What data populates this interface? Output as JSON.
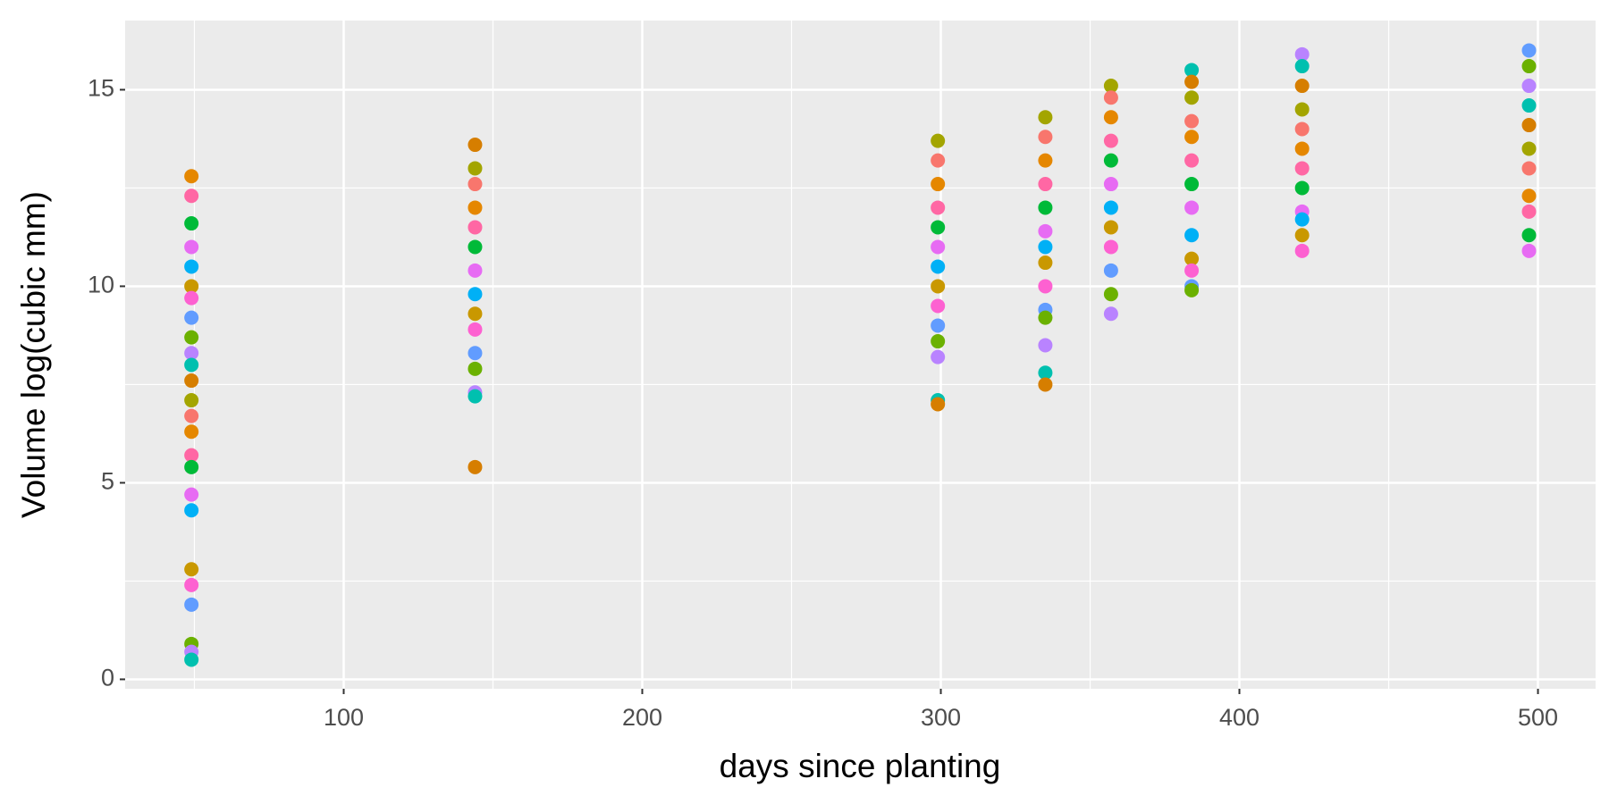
{
  "chart_data": {
    "type": "scatter",
    "x_label": "days since planting",
    "y_label": "Volume log(cubic mm)",
    "x": [
      49,
      49,
      49,
      49,
      49,
      49,
      49,
      49,
      49,
      49,
      49,
      49,
      49,
      49,
      49,
      49,
      49,
      49,
      49,
      49,
      49,
      49,
      49,
      49,
      49,
      144,
      144,
      144,
      144,
      144,
      144,
      144,
      144,
      144,
      144,
      144,
      144,
      144,
      144,
      144,
      299,
      299,
      299,
      299,
      299,
      299,
      299,
      299,
      299,
      299,
      299,
      299,
      299,
      299,
      335,
      335,
      335,
      335,
      335,
      335,
      335,
      335,
      335,
      335,
      335,
      335,
      335,
      335,
      357,
      357,
      357,
      357,
      357,
      357,
      357,
      357,
      357,
      357,
      357,
      357,
      384,
      384,
      384,
      384,
      384,
      384,
      384,
      384,
      384,
      384,
      384,
      384,
      384,
      421,
      421,
      421,
      421,
      421,
      421,
      421,
      421,
      421,
      421,
      421,
      421,
      497,
      497,
      497,
      497,
      497,
      497,
      497,
      497,
      497,
      497,
      497
    ],
    "y": [
      12.8,
      12.3,
      11.6,
      11.0,
      10.5,
      10.0,
      9.7,
      9.2,
      8.7,
      8.3,
      8.0,
      7.6,
      7.1,
      6.7,
      6.3,
      5.7,
      5.4,
      4.7,
      4.3,
      2.8,
      2.4,
      1.9,
      0.9,
      0.7,
      0.5,
      13.6,
      13.0,
      12.6,
      12.0,
      11.5,
      11.0,
      10.4,
      9.8,
      9.3,
      8.9,
      8.3,
      7.9,
      7.3,
      7.2,
      5.4,
      13.7,
      13.2,
      12.6,
      12.0,
      11.5,
      11.0,
      10.5,
      10.0,
      9.5,
      9.0,
      8.6,
      8.2,
      7.1,
      7.0,
      14.3,
      13.8,
      13.2,
      12.6,
      12.0,
      11.4,
      11.0,
      10.6,
      10.0,
      9.4,
      9.2,
      8.5,
      7.8,
      7.5,
      15.1,
      14.8,
      14.3,
      13.7,
      13.2,
      12.6,
      12.0,
      11.5,
      11.0,
      10.4,
      9.8,
      9.3,
      15.5,
      15.2,
      14.8,
      14.2,
      13.8,
      13.2,
      12.6,
      12.0,
      11.3,
      10.7,
      10.4,
      10.0,
      9.9,
      15.9,
      15.6,
      15.1,
      14.5,
      14.0,
      13.5,
      13.0,
      12.5,
      11.9,
      11.7,
      11.3,
      10.9,
      16.0,
      15.6,
      15.1,
      14.6,
      14.1,
      13.5,
      13.0,
      12.3,
      11.9,
      11.3,
      10.9
    ],
    "palette": [
      "#E58700",
      "#FF67A4",
      "#00BA38",
      "#E76BF3",
      "#00B0F6",
      "#C99800",
      "#FD61D1",
      "#619CFF",
      "#6BB100",
      "#B983FF",
      "#00C0AF",
      "#D67E00",
      "#A3A500",
      "#F8766D"
    ],
    "xlim": [
      26.8,
      519.3
    ],
    "ylim": [
      -0.24,
      16.76
    ],
    "xticks": [
      100,
      200,
      300,
      400,
      500
    ],
    "yticks": [
      0,
      5,
      10,
      15
    ],
    "x_minor_grid": [
      50,
      150,
      250,
      350,
      450
    ],
    "y_minor_grid": [
      2.5,
      7.5,
      12.5
    ],
    "grid": true
  }
}
